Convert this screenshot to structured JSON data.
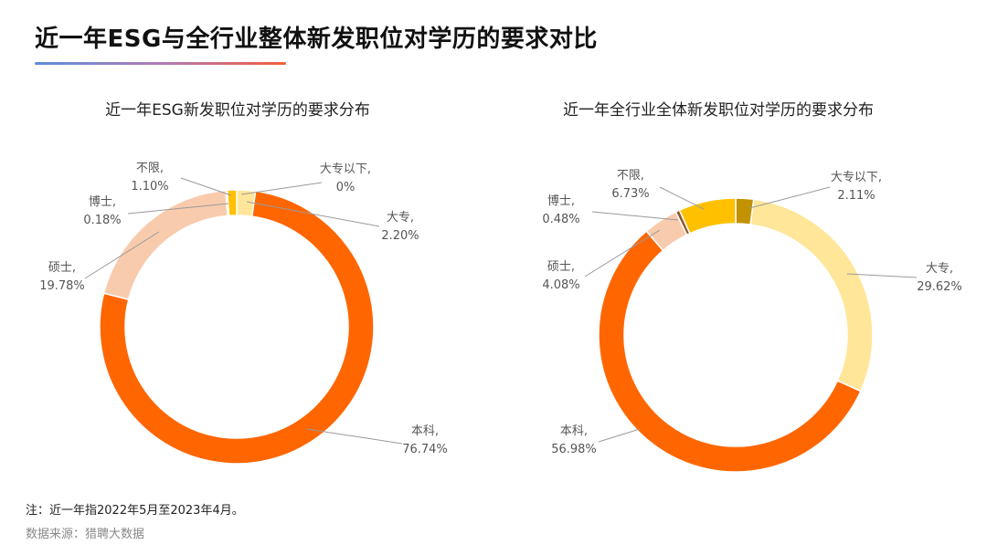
{
  "page": {
    "title": "近一年ESG与全行业整体新发职位对学历的要求对比",
    "footnote": "注：近一年指2022年5月至2023年4月。",
    "source": "数据来源：猎聘大数据"
  },
  "chart_data": [
    {
      "type": "pie",
      "title": "近一年ESG新发职位对学历的要求分布",
      "categories": [
        "大专以下",
        "大专",
        "本科",
        "硕士",
        "博士",
        "不限"
      ],
      "values": [
        0.0,
        2.2,
        76.74,
        19.78,
        0.18,
        1.1
      ],
      "labels": [
        "0%",
        "2.20%",
        "76.74%",
        "19.78%",
        "0.18%",
        "1.10%"
      ],
      "colors": [
        "#C39200",
        "#FFE699",
        "#FF6600",
        "#F8CBAD",
        "#8B5A2B",
        "#FFC000"
      ]
    },
    {
      "type": "pie",
      "title": "近一年全行业全体新发职位对学历的要求分布",
      "categories": [
        "大专以下",
        "大专",
        "本科",
        "硕士",
        "博士",
        "不限"
      ],
      "values": [
        2.11,
        29.62,
        56.98,
        4.08,
        0.48,
        6.73
      ],
      "labels": [
        "2.11%",
        "29.62%",
        "56.98%",
        "4.08%",
        "0.48%",
        "6.73%"
      ],
      "colors": [
        "#C39200",
        "#FFE699",
        "#FF6600",
        "#F8CBAD",
        "#8B5A2B",
        "#FFC000"
      ]
    }
  ]
}
